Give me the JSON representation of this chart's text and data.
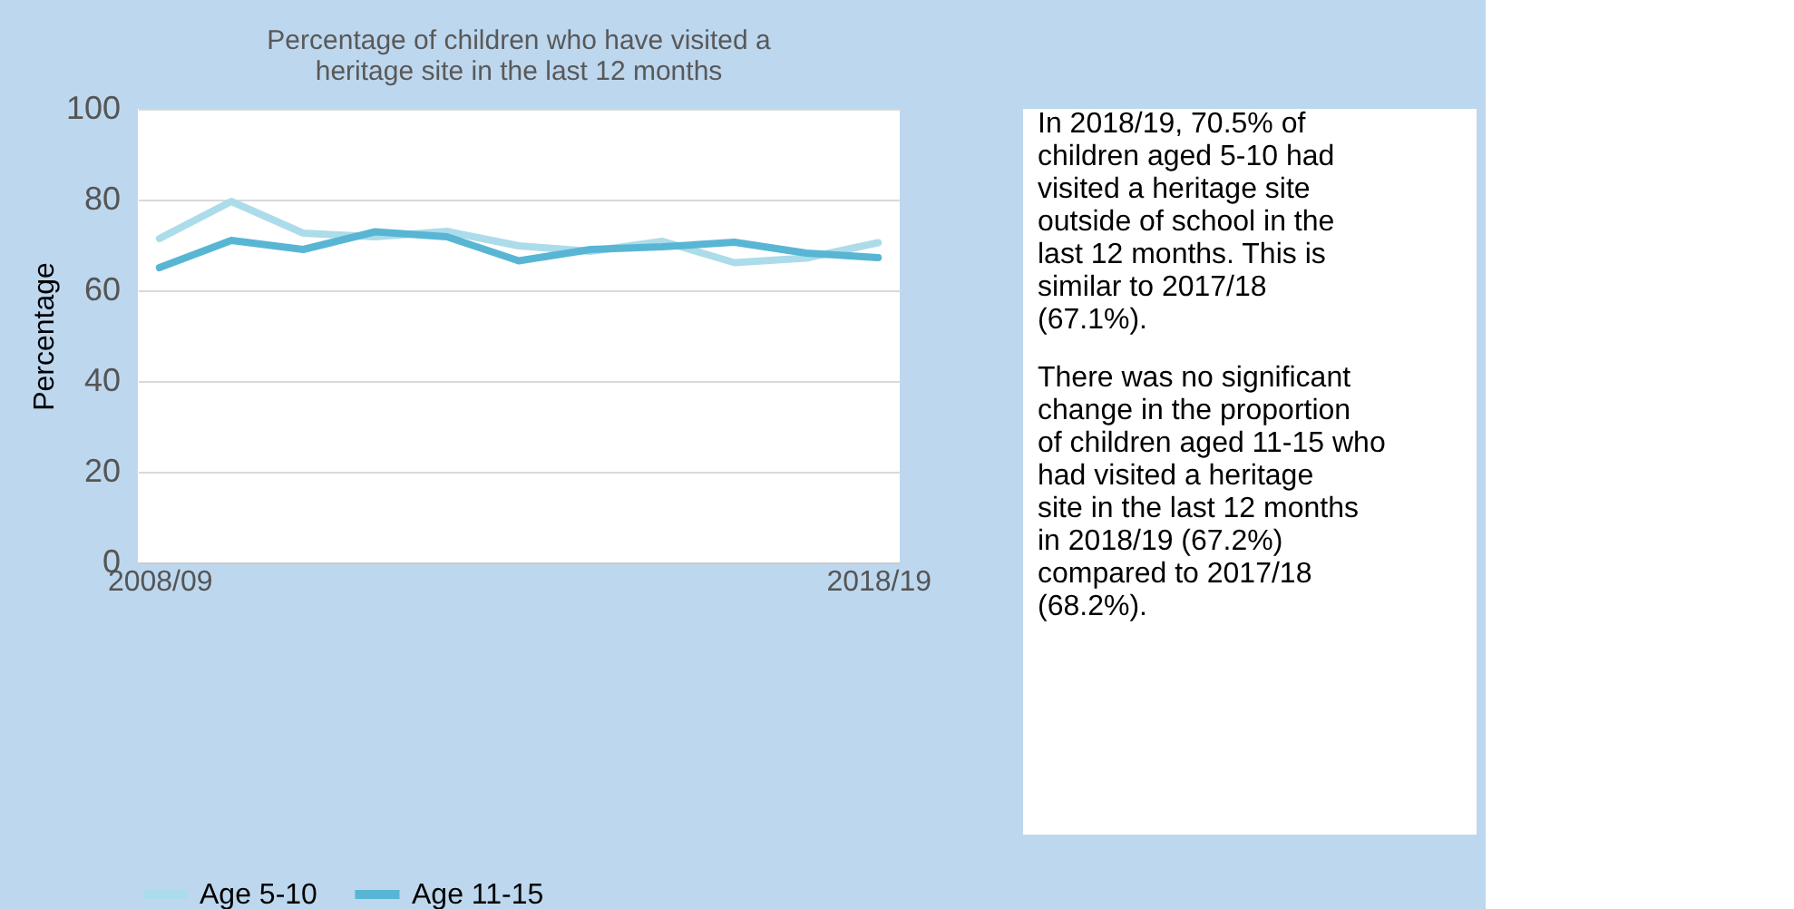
{
  "chart_data": {
    "type": "line",
    "title": "Percentage of children who have visited a heritage site in the last 12 months",
    "ylabel": "Percentage",
    "categories": [
      "2008/09",
      null,
      null,
      null,
      null,
      null,
      null,
      null,
      null,
      null,
      "2018/19"
    ],
    "series": [
      {
        "name": "Age 5-10",
        "color": "#acdcea",
        "values": [
          71.4,
          79.6,
          72.6,
          71.8,
          73.0,
          69.8,
          68.6,
          70.8,
          66.1,
          67.1,
          70.5
        ]
      },
      {
        "name": "Age 11-15",
        "color": "#58b6d4",
        "values": [
          65.0,
          71.0,
          69.0,
          72.9,
          71.8,
          66.5,
          69.0,
          69.6,
          70.6,
          68.2,
          67.2
        ]
      }
    ],
    "ylim": [
      0,
      100
    ],
    "yticks": [
      0,
      20,
      40,
      60,
      80,
      100
    ],
    "grid": "y",
    "legend": "bottom",
    "marker": "none",
    "line_style": "solid",
    "annotations": [
      "In 2018/19, 70.5% of children aged 5-10 had visited a heritage site outside of school in the last 12 months. This is similar to 2017/18 (67.1%).",
      "There was no significant change in the proportion of children aged 11-15 who had visited a heritage site in the last 12 months in 2018/19 (67.2%) compared to 2017/18 (68.2%)."
    ]
  }
}
